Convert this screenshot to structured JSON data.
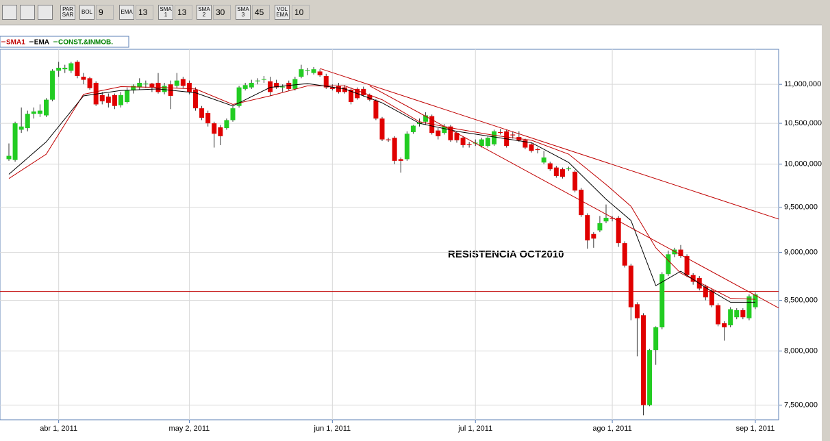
{
  "toolbar": {
    "buttons": [
      {
        "label": [
          "PAR",
          "SAR"
        ]
      },
      {
        "label": [
          "BOL"
        ],
        "value": 9
      },
      {
        "label": [
          "EMA"
        ],
        "value": 13
      },
      {
        "label": [
          "SMA",
          "1"
        ],
        "value": 13
      },
      {
        "label": [
          "SMA",
          "2"
        ],
        "value": 30
      },
      {
        "label": [
          "SMA",
          "3"
        ],
        "value": 45
      },
      {
        "label": [
          "VOL",
          "EMA"
        ],
        "value": 10
      }
    ]
  },
  "chart_data": {
    "type": "candlestick",
    "log_scale": true,
    "grid": true,
    "legend": "top-left",
    "categories": [
      null,
      null,
      null,
      null,
      null,
      null,
      null,
      null,
      "abr 1, 2011",
      null,
      null,
      null,
      null,
      null,
      null,
      null,
      null,
      null,
      null,
      null,
      null,
      null,
      null,
      null,
      null,
      null,
      null,
      null,
      null,
      "may 2, 2011",
      null,
      null,
      null,
      null,
      null,
      null,
      null,
      null,
      null,
      null,
      null,
      null,
      null,
      null,
      null,
      null,
      null,
      null,
      null,
      null,
      null,
      null,
      "jun 1, 2011",
      null,
      null,
      null,
      null,
      null,
      null,
      null,
      null,
      null,
      null,
      null,
      null,
      null,
      null,
      null,
      null,
      null,
      null,
      null,
      null,
      null,
      null,
      "jul 1, 2011",
      null,
      null,
      null,
      null,
      null,
      null,
      null,
      null,
      null,
      null,
      null,
      null,
      null,
      null,
      null,
      null,
      null,
      null,
      null,
      null,
      null,
      "ago 1, 2011",
      null,
      null,
      null,
      null,
      null,
      null,
      null,
      null,
      null,
      null,
      null,
      null,
      null,
      null,
      null,
      null,
      null,
      null,
      null,
      null,
      null,
      null,
      "sep 1, 2011"
    ],
    "ylim": [
      7370000,
      11470000
    ],
    "yticks": [
      {
        "value": 7500000,
        "label": "7,500,000"
      },
      {
        "value": 8000000,
        "label": "8,000,000"
      },
      {
        "value": 8500000,
        "label": "8,500,000"
      },
      {
        "value": 9000000,
        "label": "9,000,000"
      },
      {
        "value": 9500000,
        "label": "9,500,000"
      },
      {
        "value": 10000000,
        "label": "10,000,000"
      },
      {
        "value": 10500000,
        "label": "10,500,000"
      },
      {
        "value": 11000000,
        "label": "11,000,000"
      }
    ],
    "series": [
      {
        "name": "SMA1",
        "type": "line",
        "color": "#c00000",
        "x": [
          0,
          6,
          12,
          18,
          24,
          30,
          36,
          42,
          48,
          54,
          60,
          66,
          72,
          78,
          84,
          90,
          96,
          100,
          104,
          108,
          112,
          116,
          120
        ],
        "values": [
          9830000,
          10120000,
          10870000,
          10970000,
          10960000,
          10940000,
          10740000,
          10850000,
          10980000,
          10980000,
          10800000,
          10520000,
          10430000,
          10350000,
          10290000,
          10120000,
          9760000,
          9510000,
          9050000,
          8780000,
          8650000,
          8520000,
          8510000
        ]
      },
      {
        "name": "EMA",
        "type": "line",
        "color": "#000000",
        "x": [
          0,
          6,
          12,
          18,
          24,
          30,
          36,
          42,
          48,
          54,
          60,
          66,
          72,
          78,
          84,
          90,
          96,
          100,
          104,
          108,
          112,
          116,
          120
        ],
        "values": [
          9880000,
          10270000,
          10850000,
          10920000,
          10940000,
          10890000,
          10720000,
          10960000,
          11010000,
          10940000,
          10760000,
          10500000,
          10400000,
          10330000,
          10260000,
          10020000,
          9590000,
          9350000,
          8650000,
          8800000,
          8630000,
          8480000,
          8480000
        ]
      },
      {
        "name": "CONST.&INMOB.",
        "type": "candlestick",
        "color": "#008000",
        "up_color": "#22cc22",
        "down_color": "#e00000",
        "open": [
          10060000,
          10050000,
          10420000,
          10440000,
          10620000,
          10620000,
          10600000,
          10800000,
          11180000,
          11200000,
          11180000,
          11300000,
          11100000,
          11080000,
          11020000,
          10860000,
          10840000,
          10860000,
          10730000,
          10770000,
          10920000,
          10960000,
          11000000,
          11010000,
          11020000,
          10900000,
          11000000,
          10980000,
          11070000,
          11020000,
          10930000,
          10690000,
          10630000,
          10500000,
          10450000,
          10440000,
          10540000,
          10720000,
          10940000,
          10960000,
          11040000,
          11060000,
          11040000,
          11020000,
          10960000,
          11020000,
          10940000,
          11100000,
          11180000,
          11150000,
          11170000,
          11110000,
          10960000,
          10980000,
          10960000,
          10930000,
          10940000,
          10940000,
          10860000,
          10790000,
          10560000,
          10300000,
          10320000,
          10060000,
          10060000,
          10390000,
          10490000,
          10520000,
          10590000,
          10410000,
          10380000,
          10460000,
          10380000,
          10320000,
          10240000,
          10250000,
          10220000,
          10220000,
          10240000,
          10390000,
          10400000,
          10360000,
          10330000,
          10290000,
          10240000,
          10180000,
          10020000,
          10010000,
          9960000,
          9940000,
          9940000,
          9910000,
          9700000,
          9410000,
          9200000,
          9240000,
          9340000,
          9380000,
          9380000,
          9100000,
          8860000,
          8460000,
          8350000,
          7500000,
          8010000,
          8230000,
          8770000,
          8980000,
          9030000,
          8960000,
          8760000,
          8730000,
          8640000,
          8600000,
          8450000,
          8270000,
          8250000,
          8330000,
          8400000,
          8320000,
          8430000
        ],
        "high": [
          10250000,
          10520000,
          10700000,
          10660000,
          10700000,
          10740000,
          10820000,
          11200000,
          11300000,
          11260000,
          11300000,
          11320000,
          11150000,
          11100000,
          11040000,
          10900000,
          10880000,
          10880000,
          10900000,
          10960000,
          11000000,
          11080000,
          11050000,
          11020000,
          11150000,
          11020000,
          11050000,
          11150000,
          11100000,
          11050000,
          10960000,
          10720000,
          10660000,
          10520000,
          10480000,
          10560000,
          10720000,
          10980000,
          11020000,
          11060000,
          11080000,
          11110000,
          11100000,
          11060000,
          11000000,
          11050000,
          11100000,
          11260000,
          11220000,
          11230000,
          11200000,
          11140000,
          11000000,
          11020000,
          10990000,
          10960000,
          10960000,
          10970000,
          10880000,
          10810000,
          10580000,
          10320000,
          10340000,
          10080000,
          10400000,
          10480000,
          10560000,
          10640000,
          10610000,
          10440000,
          10490000,
          10480000,
          10400000,
          10340000,
          10270000,
          10300000,
          10320000,
          10340000,
          10420000,
          10430000,
          10420000,
          10400000,
          10400000,
          10310000,
          10260000,
          10200000,
          10160000,
          10030000,
          9980000,
          9960000,
          9970000,
          9930000,
          9720000,
          9430000,
          9220000,
          9400000,
          9530000,
          9400000,
          9400000,
          9120000,
          8880000,
          8480000,
          8370000,
          8020000,
          8240000,
          8790000,
          9020000,
          9050000,
          9080000,
          8980000,
          8780000,
          8750000,
          8660000,
          8620000,
          8470000,
          8290000,
          8430000,
          8420000,
          8420000,
          8560000,
          8580000
        ],
        "low": [
          10040000,
          10030000,
          10380000,
          10400000,
          10560000,
          10580000,
          10580000,
          10780000,
          11100000,
          11150000,
          11150000,
          11080000,
          11000000,
          10930000,
          10720000,
          10740000,
          10700000,
          10680000,
          10700000,
          10750000,
          10880000,
          10930000,
          10950000,
          10900000,
          10880000,
          10870000,
          10680000,
          10950000,
          10950000,
          10870000,
          10660000,
          10540000,
          10460000,
          10200000,
          10230000,
          10420000,
          10520000,
          10700000,
          10920000,
          10940000,
          11000000,
          11020000,
          10850000,
          10940000,
          10900000,
          10920000,
          10920000,
          11080000,
          11120000,
          11130000,
          11100000,
          10940000,
          10920000,
          10880000,
          10880000,
          10740000,
          10800000,
          10840000,
          10780000,
          10540000,
          10280000,
          10270000,
          10000000,
          9900000,
          10040000,
          10370000,
          10460000,
          10480000,
          10360000,
          10300000,
          10360000,
          10270000,
          10260000,
          10200000,
          10200000,
          10220000,
          10200000,
          10200000,
          10220000,
          10360000,
          10200000,
          10310000,
          10270000,
          10180000,
          10140000,
          10130000,
          10000000,
          9920000,
          9840000,
          9830000,
          9920000,
          9670000,
          9390000,
          9040000,
          9050000,
          9220000,
          9320000,
          9340000,
          9060000,
          8840000,
          8300000,
          7950000,
          7410000,
          7490000,
          7870000,
          8210000,
          8750000,
          8950000,
          8940000,
          8740000,
          8660000,
          8600000,
          8500000,
          8430000,
          8240000,
          8100000,
          8230000,
          8310000,
          8310000,
          8300000,
          8410000
        ],
        "close": [
          10100000,
          10500000,
          10460000,
          10620000,
          10650000,
          10660000,
          10800000,
          11180000,
          11220000,
          11220000,
          11280000,
          11110000,
          11060000,
          10950000,
          10740000,
          10780000,
          10760000,
          10720000,
          10860000,
          10920000,
          10980000,
          11020000,
          11010000,
          10960000,
          10900000,
          10980000,
          10850000,
          11050000,
          10980000,
          10900000,
          10690000,
          10570000,
          10500000,
          10370000,
          10340000,
          10540000,
          10690000,
          10960000,
          10990000,
          11020000,
          11050000,
          11070000,
          10900000,
          10960000,
          10970000,
          10940000,
          11070000,
          11200000,
          11190000,
          11200000,
          11120000,
          10960000,
          10940000,
          10900000,
          10900000,
          10770000,
          10820000,
          10860000,
          10800000,
          10560000,
          10300000,
          10290000,
          10040000,
          10040000,
          10370000,
          10470000,
          10510000,
          10600000,
          10380000,
          10340000,
          10460000,
          10290000,
          10290000,
          10230000,
          10230000,
          10260000,
          10300000,
          10320000,
          10400000,
          10380000,
          10220000,
          10350000,
          10290000,
          10200000,
          10160000,
          10170000,
          10080000,
          9940000,
          9860000,
          9850000,
          9950000,
          9690000,
          9410000,
          9130000,
          9150000,
          9320000,
          9380000,
          9370000,
          9100000,
          8860000,
          8430000,
          8320000,
          7500000,
          8010000,
          8230000,
          8770000,
          8980000,
          9030000,
          8960000,
          8760000,
          8690000,
          8620000,
          8530000,
          8450000,
          8260000,
          8230000,
          8410000,
          8400000,
          8330000,
          8540000,
          8560000
        ]
      }
    ],
    "trendlines": [
      {
        "color": "#c00000",
        "x": [
          50,
          124
        ],
        "values": [
          11210000,
          9360000
        ]
      },
      {
        "color": "#c00000",
        "x": [
          58,
          125
        ],
        "values": [
          10980000,
          8380000
        ]
      }
    ],
    "hline": {
      "value": 8590000,
      "color": "#c00000"
    },
    "annotation": "RESISTENCIA OCT2010"
  }
}
